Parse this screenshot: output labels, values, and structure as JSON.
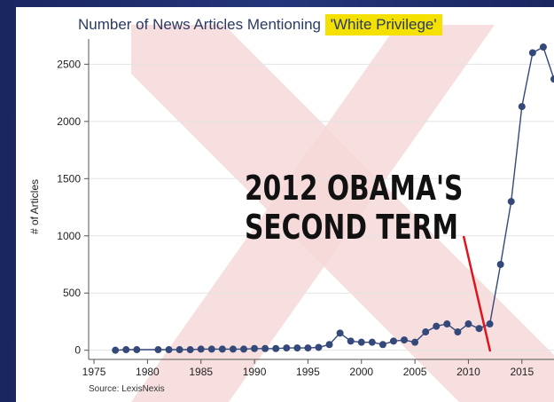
{
  "chart_data": {
    "type": "line",
    "title_prefix": "Number of News Articles Mentioning ",
    "title_highlight": "'White Privilege'",
    "ylabel": "# of Articles",
    "xlabel": "",
    "xlim": [
      1974.5,
      2018
    ],
    "ylim": [
      -80,
      2720
    ],
    "x_ticks": [
      1975,
      1980,
      1985,
      1990,
      1995,
      2000,
      2005,
      2010,
      2015
    ],
    "y_ticks": [
      0,
      500,
      1000,
      1500,
      2000,
      2500
    ],
    "grid": "horizontal",
    "series": [
      {
        "color": "#34487a",
        "x": [
          1977,
          1978,
          1979,
          1981,
          1982,
          1983,
          1984,
          1985,
          1986,
          1987,
          1988,
          1989,
          1990,
          1991,
          1992,
          1993,
          1994,
          1995,
          1996,
          1997,
          1998,
          1999,
          2000,
          2001,
          2002,
          2003,
          2004,
          2005,
          2006,
          2007,
          2008,
          2009,
          2010,
          2011,
          2012,
          2013,
          2014,
          2015,
          2016,
          2017,
          2018
        ],
        "y": [
          0,
          5,
          5,
          5,
          5,
          5,
          5,
          10,
          10,
          10,
          10,
          10,
          15,
          15,
          15,
          20,
          20,
          20,
          25,
          50,
          150,
          80,
          70,
          70,
          50,
          80,
          90,
          70,
          160,
          210,
          230,
          160,
          230,
          190,
          230,
          750,
          1300,
          2130,
          2600,
          2650,
          2370
        ]
      }
    ],
    "annotation": {
      "line1": "2012 OBAMA'S",
      "line2": "SECOND TERM",
      "pointer_color": "#e0141e"
    },
    "source": "Source: LexisNexis"
  },
  "colors": {
    "background": "#1c2a63",
    "highlight": "#f5e100",
    "watermark": "#f6d9d9"
  }
}
